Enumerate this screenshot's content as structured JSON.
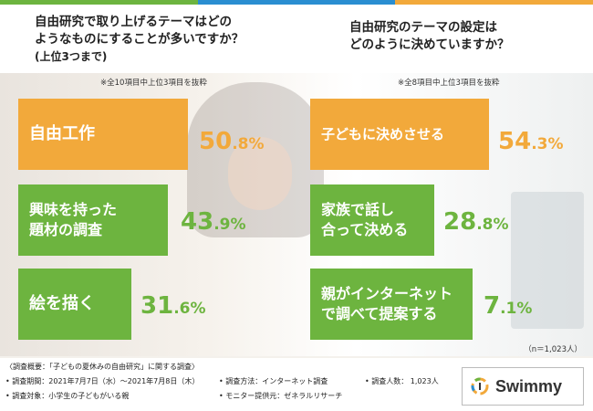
{
  "colors": {
    "orange": "#F2A93B",
    "green": "#6DB43F",
    "blue": "#2A8ED1",
    "dark": "#333333"
  },
  "header": {
    "q1_line1": "自由研究で取り上げるテーマはどの",
    "q1_line2": "ようなものにすることが多いですか？",
    "q1_sub": "(上位3つまで)",
    "q2_line1": "自由研究のテーマの設定は",
    "q2_line2": "どのように決めていますか？",
    "note_left": "※全10項目中上位3項目を抜粋",
    "note_right": "※全8項目中上位3項目を抜粋"
  },
  "chart_data": [
    {
      "type": "table",
      "title": "自由研究で取り上げるテーマはどのようなものにすることが多いですか？(上位3つまで)",
      "categories": [
        "自由工作",
        "興味を持った題材の調査",
        "絵を描く"
      ],
      "values": [
        50.8,
        43.9,
        31.6
      ],
      "value_labels": [
        {
          "main": "50",
          "dec": ".8%"
        },
        {
          "main": "43",
          "dec": ".9%"
        },
        {
          "main": "31",
          "dec": ".6%"
        }
      ]
    },
    {
      "type": "table",
      "title": "自由研究のテーマの設定はどのように決めていますか？",
      "categories": [
        "子どもに決めさせる",
        "家族で話し合って決める",
        "親がインターネットで調べて提案する"
      ],
      "values": [
        54.3,
        28.8,
        7.1
      ],
      "value_labels": [
        {
          "main": "54",
          "dec": ".3%"
        },
        {
          "main": "28",
          "dec": ".8%"
        },
        {
          "main": "7",
          "dec": ".1%"
        }
      ]
    }
  ],
  "left_labels": [
    [
      "自由工作"
    ],
    [
      "興味を持った",
      "題材の調査"
    ],
    [
      "絵を描く"
    ]
  ],
  "right_labels": [
    [
      "子どもに決めさせる"
    ],
    [
      "家族で話し",
      "合って決める"
    ],
    [
      "親がインターネット",
      "で調べて提案する"
    ]
  ],
  "sample": "（n＝1,023人）",
  "footer": {
    "overview": "〈調査概要：「子どもの夏休みの自由研究」に関する調査〉",
    "period": "• 調査期間：2021年7月7日（水）〜2021年7月8日（木）",
    "method": "• 調査方法：インターネット調査",
    "count": "• 調査人数： 1,023人",
    "target": "• 調査対象：小学生の子どもがいる親",
    "provider": "• モニター提供元：ゼネラルリサーチ"
  },
  "logo": {
    "text": "Swimmy"
  }
}
